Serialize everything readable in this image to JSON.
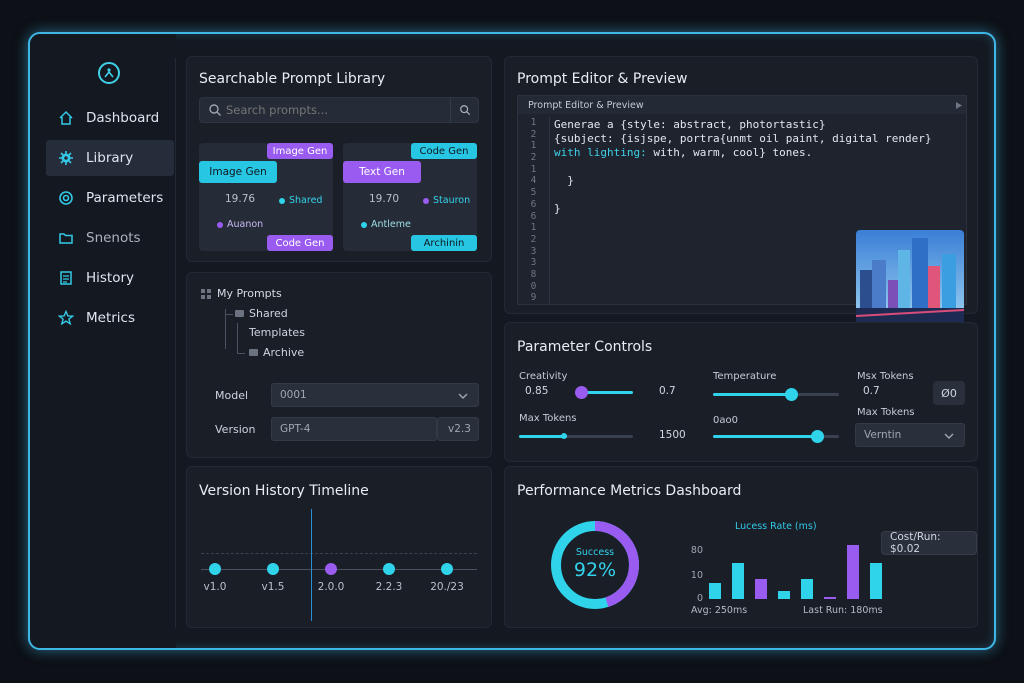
{
  "sidebar": {
    "items": [
      {
        "label": "Dashboard",
        "icon": "home-icon"
      },
      {
        "label": "Library",
        "icon": "gear-icon",
        "active": true
      },
      {
        "label": "Parameters",
        "icon": "target-icon"
      },
      {
        "label": "Snenots",
        "icon": "folder-icon"
      },
      {
        "label": "History",
        "icon": "list-icon"
      },
      {
        "label": "Metrics",
        "icon": "star-icon"
      }
    ]
  },
  "library": {
    "title": "Searchable Prompt Library",
    "search_placeholder": "Search prompts...",
    "cards": [
      {
        "top_tag": "Image Gen",
        "head": "Image Gen",
        "number": "19.76",
        "meta_right": "Shared",
        "meta_left": "Auanon",
        "bottom_tag": "Code Gen"
      },
      {
        "top_tag": "Code Gen",
        "head": "Text Gen",
        "number": "19.70",
        "meta_right": "Stauron",
        "meta_left": "Antleme",
        "bottom_tag": "Archinin"
      }
    ]
  },
  "my_prompts": {
    "title": "My Prompts",
    "tree": [
      "Shared",
      "Templates",
      "Archive"
    ],
    "model_label": "Model",
    "model_value": "0001",
    "version_label": "Version",
    "version_value": "GPT-4",
    "version_tag": "v2.3"
  },
  "editor": {
    "title": "Prompt Editor & Preview",
    "header": "Prompt Editor & Preview",
    "gutter": [
      "1",
      "2",
      "1",
      "2",
      "1",
      "4",
      "5",
      "6",
      "6",
      "1",
      "2",
      "3",
      "3",
      "8",
      "0",
      "9"
    ],
    "code_lines": [
      "Generae a {style: abstract, photortastic}",
      "{subject: {isjspe, portra{unmt oil paint, digital render}",
      "with lighting: with, warm, cool} tones.",
      "",
      "  }",
      "",
      "}"
    ]
  },
  "params": {
    "title": "Parameter Controls",
    "creativity_label": "Creativity",
    "creativity_value": "0.85",
    "creativity_level": 0.55,
    "creativity_end": "0.7",
    "max_tokens_label": "Max Tokens",
    "max_tokens_value": "1500",
    "max_tokens_level": 0.42,
    "temperature_label": "Temperature",
    "temperature_level": 0.62,
    "oaoo_label": "0ao0",
    "oaoo_level": 0.8,
    "right_max_label": "Msx Tokens",
    "right_max_value": "0.7",
    "right_btn": "Ø0",
    "right_max_label2": "Max Tokens",
    "version_select": "Verntin"
  },
  "timeline": {
    "title": "Version History Timeline",
    "nodes": [
      {
        "label": "v1.0",
        "color": "#2fd3ea"
      },
      {
        "label": "v1.5",
        "color": "#2fd3ea"
      },
      {
        "label": "2.0.0",
        "color": "#9a5cf0"
      },
      {
        "label": "2.2.3",
        "color": "#2fd3ea"
      },
      {
        "label": "20./23",
        "color": "#2fd3ea"
      }
    ]
  },
  "metrics": {
    "title": "Performance Metrics Dashboard",
    "success_label": "Success",
    "success_value": "92%",
    "success_fraction": 0.92,
    "chart_title": "Lucess Rate (ms)",
    "cost": "Cost/Run: $0.02",
    "avg": "Avg: 250ms",
    "last_run": "Last Run: 180ms",
    "chart_data": {
      "type": "bar",
      "title": "Lucess Rate (ms)",
      "yticks": [
        "80",
        "10",
        "0"
      ],
      "values": [
        8,
        18,
        10,
        4,
        10,
        1,
        27,
        18
      ],
      "colors": [
        "#2fd3ea",
        "#2fd3ea",
        "#9a5cf0",
        "#2fd3ea",
        "#2fd3ea",
        "#9a5cf0",
        "#9a5cf0",
        "#2fd3ea"
      ],
      "ylim": [
        0,
        30
      ]
    }
  },
  "colors": {
    "cyan": "#2fd3ea",
    "purple": "#9a5cf0",
    "frame": "#3fb7e6"
  }
}
